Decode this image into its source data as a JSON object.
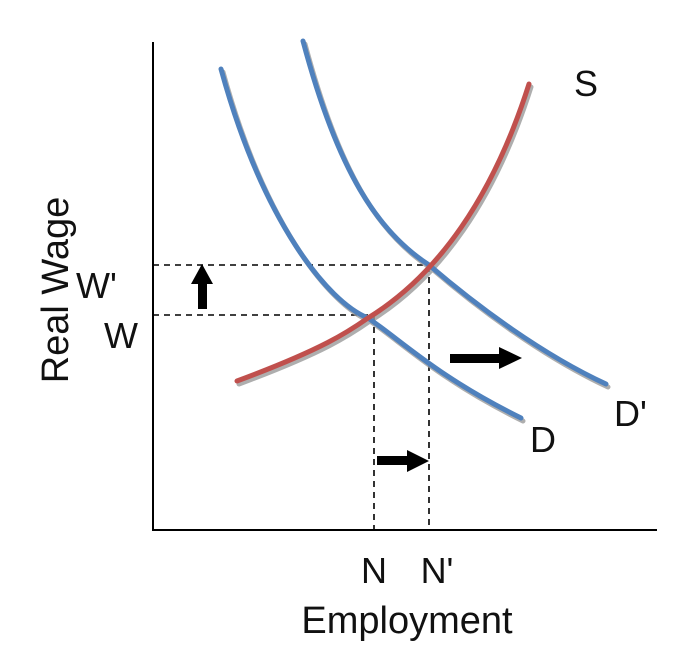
{
  "axes": {
    "y_label": "Real Wage",
    "x_label": "Employment"
  },
  "curves": {
    "supply": {
      "label": "S",
      "color": "#c0504d"
    },
    "demand": {
      "label": "D",
      "color": "#4f81bd"
    },
    "demand_shifted": {
      "label": "D'",
      "color": "#4f81bd"
    }
  },
  "levels": {
    "wage": "W",
    "wage_new": "W'",
    "employment": "N",
    "employment_new": "N'"
  },
  "colors": {
    "axis": "#000000",
    "arrow": "#000000",
    "guide": "#000000",
    "shadow": "#9a9a9a"
  }
}
